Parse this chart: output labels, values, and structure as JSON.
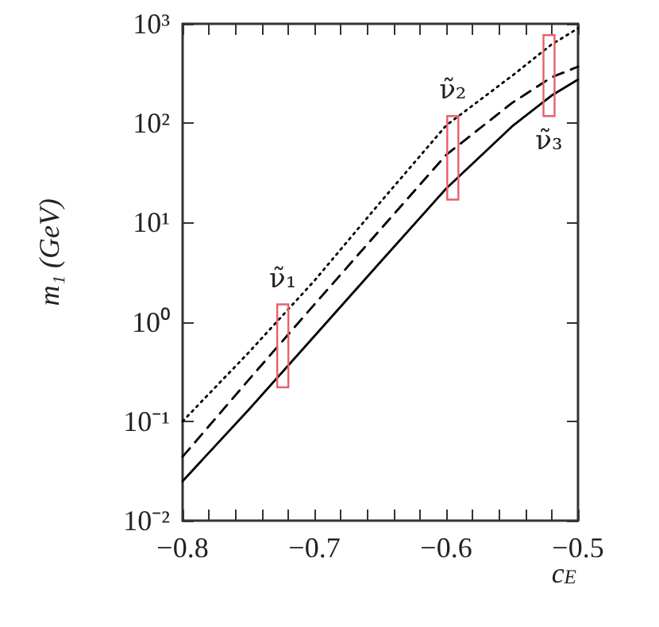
{
  "chart_data": {
    "type": "line",
    "xlabel": "c$_{E}$",
    "ylabel": "m₁ (GeV)",
    "log": "y",
    "xlim": [
      -0.8,
      -0.5
    ],
    "ylim": [
      0.01,
      1000
    ],
    "xticks": [
      {
        "value": -0.8,
        "label": "−0.8"
      },
      {
        "value": -0.78,
        "label": null
      },
      {
        "value": -0.76,
        "label": null
      },
      {
        "value": -0.74,
        "label": null
      },
      {
        "value": -0.72,
        "label": null
      },
      {
        "value": -0.7,
        "label": "−0.7"
      },
      {
        "value": -0.68,
        "label": null
      },
      {
        "value": -0.66,
        "label": null
      },
      {
        "value": -0.64,
        "label": null
      },
      {
        "value": -0.62,
        "label": null
      },
      {
        "value": -0.6,
        "label": "−0.6"
      },
      {
        "value": -0.58,
        "label": null
      },
      {
        "value": -0.56,
        "label": null
      },
      {
        "value": -0.54,
        "label": null
      },
      {
        "value": -0.52,
        "label": null
      },
      {
        "value": -0.5,
        "label": "−0.5"
      }
    ],
    "yticks": [
      {
        "value": 0.01,
        "label": "10⁻²"
      },
      {
        "value": 0.1,
        "label": "10⁻¹"
      },
      {
        "value": 1,
        "label": "10⁰"
      },
      {
        "value": 10,
        "label": "10¹"
      },
      {
        "value": 100,
        "label": "10²"
      },
      {
        "value": 1000,
        "label": "10³"
      }
    ],
    "grid": false,
    "marker": "none",
    "x": [
      -0.8,
      -0.75,
      -0.7,
      -0.65,
      -0.6,
      -0.55,
      -0.52,
      -0.5
    ],
    "series": [
      {
        "color": "#000000",
        "line_style": "solid",
        "values": [
          0.025,
          0.13,
          0.72,
          4,
          22,
          93,
          190,
          275
        ]
      },
      {
        "color": "#000000",
        "line_style": "dashed",
        "values": [
          0.044,
          0.26,
          1.5,
          8.5,
          48,
          160,
          290,
          370
        ]
      },
      {
        "color": "#000000",
        "line_style": "dotted",
        "values": [
          0.1,
          0.49,
          2.6,
          16,
          95,
          300,
          620,
          900
        ]
      },
      {
        "type": "bar",
        "color": "#e8606a",
        "x": [
          -0.724,
          -0.595,
          -0.522
        ],
        "base": [
          0.22,
          17,
          118
        ],
        "values": [
          1.28,
          101,
          652
        ]
      }
    ],
    "annotations": [
      "ν̃₁",
      "ν̃₂",
      "ν̃₃"
    ]
  }
}
